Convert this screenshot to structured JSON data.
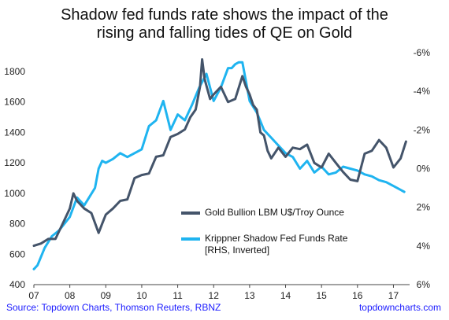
{
  "chart_data": {
    "type": "line",
    "title_line1": "Shadow fed funds rate shows the impact of the",
    "title_line2": "rising and falling tides of QE on Gold",
    "x_ticks": [
      "07",
      "08",
      "09",
      "10",
      "11",
      "12",
      "13",
      "14",
      "15",
      "16",
      "17"
    ],
    "x_range": [
      2007.0,
      2017.45
    ],
    "y_left": {
      "ticks": [
        "400",
        "600",
        "800",
        "1000",
        "1200",
        "1400",
        "1600",
        "1800"
      ],
      "range": [
        400,
        1950
      ]
    },
    "y_right": {
      "ticks": [
        "-6%",
        "-4%",
        "-2%",
        "0%",
        "2%",
        "4%",
        "6%"
      ],
      "range": [
        -6.2,
        6.0
      ],
      "inverted": true
    },
    "legend": {
      "gold_label": "Gold Bullion LBM U$/Troy Ounce",
      "shadow_label_line1": "Krippner Shadow Fed Funds Rate",
      "shadow_label_line2": "[RHS, Inverted]"
    },
    "colors": {
      "gold": "#44546a",
      "shadow": "#1fb4f0"
    },
    "series": [
      {
        "name": "Gold Bullion LBM U$/Troy Ounce",
        "axis": "left",
        "x": [
          2007.0,
          2007.2,
          2007.4,
          2007.6,
          2007.8,
          2008.0,
          2008.1,
          2008.2,
          2008.4,
          2008.6,
          2008.8,
          2008.9,
          2009.0,
          2009.2,
          2009.4,
          2009.6,
          2009.8,
          2010.0,
          2010.2,
          2010.4,
          2010.6,
          2010.8,
          2011.0,
          2011.2,
          2011.35,
          2011.5,
          2011.62,
          2011.68,
          2011.75,
          2011.9,
          2012.0,
          2012.2,
          2012.4,
          2012.6,
          2012.8,
          2012.9,
          2013.0,
          2013.1,
          2013.2,
          2013.3,
          2013.4,
          2013.5,
          2013.6,
          2013.8,
          2014.0,
          2014.2,
          2014.4,
          2014.6,
          2014.8,
          2015.0,
          2015.2,
          2015.4,
          2015.6,
          2015.8,
          2016.0,
          2016.2,
          2016.4,
          2016.6,
          2016.8,
          2017.0,
          2017.2,
          2017.35
        ],
        "y": [
          655,
          670,
          700,
          700,
          800,
          900,
          1000,
          950,
          900,
          870,
          740,
          800,
          860,
          900,
          950,
          960,
          1100,
          1120,
          1130,
          1240,
          1250,
          1370,
          1390,
          1420,
          1500,
          1550,
          1700,
          1880,
          1750,
          1620,
          1650,
          1700,
          1600,
          1620,
          1770,
          1700,
          1650,
          1580,
          1550,
          1400,
          1380,
          1280,
          1230,
          1300,
          1240,
          1300,
          1290,
          1320,
          1200,
          1170,
          1260,
          1200,
          1140,
          1090,
          1080,
          1260,
          1280,
          1350,
          1300,
          1170,
          1230,
          1340
        ]
      },
      {
        "name": "Krippner Shadow Fed Funds Rate",
        "axis": "right",
        "x": [
          2007.0,
          2007.1,
          2007.3,
          2007.5,
          2007.7,
          2008.0,
          2008.2,
          2008.4,
          2008.5,
          2008.7,
          2008.8,
          2008.9,
          2009.0,
          2009.2,
          2009.4,
          2009.6,
          2009.8,
          2010.0,
          2010.2,
          2010.4,
          2010.6,
          2010.8,
          2011.0,
          2011.2,
          2011.4,
          2011.6,
          2011.8,
          2012.0,
          2012.2,
          2012.4,
          2012.5,
          2012.6,
          2012.7,
          2012.8,
          2013.0,
          2013.2,
          2013.4,
          2013.6,
          2013.8,
          2014.0,
          2014.2,
          2014.4,
          2014.6,
          2014.8,
          2015.0,
          2015.2,
          2015.4,
          2015.6,
          2015.8,
          2016.0,
          2016.2,
          2016.4,
          2016.6,
          2016.8,
          2017.0,
          2017.3
        ],
        "y": [
          5.2,
          5.0,
          4.1,
          3.5,
          3.2,
          2.5,
          1.5,
          1.9,
          1.6,
          1.0,
          0.0,
          -0.4,
          -0.3,
          -0.5,
          -0.8,
          -0.6,
          -0.8,
          -1.0,
          -2.2,
          -2.5,
          -3.5,
          -2.0,
          -2.8,
          -2.5,
          -3.3,
          -4.2,
          -4.9,
          -3.5,
          -4.2,
          -5.2,
          -5.2,
          -5.4,
          -5.5,
          -5.5,
          -3.5,
          -2.9,
          -2.0,
          -1.6,
          -1.2,
          -0.8,
          -0.6,
          0.0,
          -0.4,
          0.2,
          -0.1,
          0.3,
          0.2,
          -0.1,
          0.0,
          0.1,
          0.3,
          0.4,
          0.6,
          0.7,
          0.9,
          1.2
        ]
      }
    ]
  },
  "footer": {
    "source": "Source: Topdown Charts, Thomson Reuters, RBNZ",
    "brand": "topdowncharts.com"
  }
}
